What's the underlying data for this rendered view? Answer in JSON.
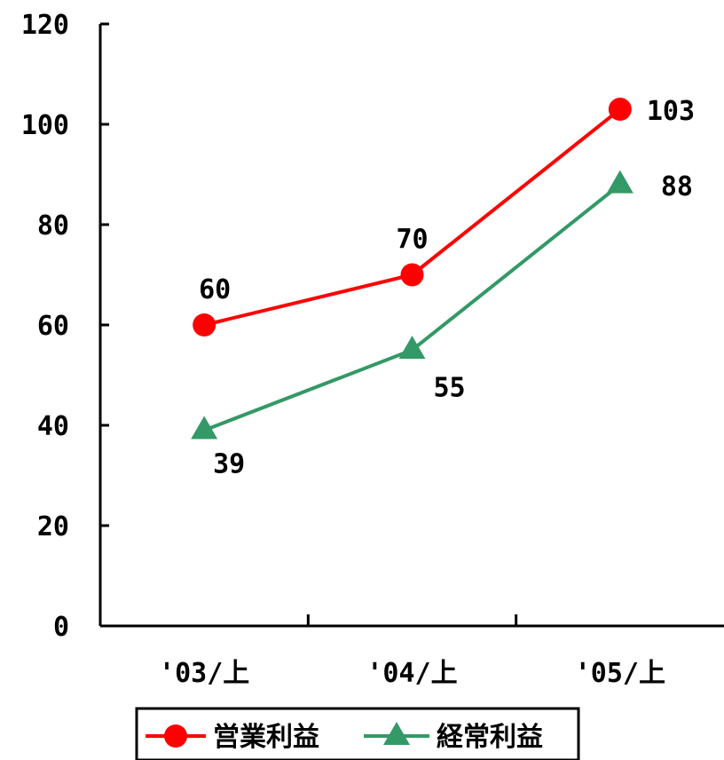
{
  "chart_data": {
    "type": "line",
    "categories": [
      "'03/上",
      "'04/上",
      "'05/上"
    ],
    "ylim": [
      0,
      120
    ],
    "yticks": [
      "0",
      "20",
      "40",
      "60",
      "80",
      "100",
      "120"
    ],
    "series": [
      {
        "name": "営業利益",
        "values": [
          60,
          70,
          103
        ],
        "labels": [
          "60",
          "70",
          "103"
        ],
        "color": "#ff0000",
        "marker": "circle"
      },
      {
        "name": "経常利益",
        "values": [
          39,
          55,
          88
        ],
        "labels": [
          "39",
          "55",
          "88"
        ],
        "color": "#339966",
        "marker": "triangle"
      }
    ],
    "grid": false,
    "legend": "bottom"
  }
}
